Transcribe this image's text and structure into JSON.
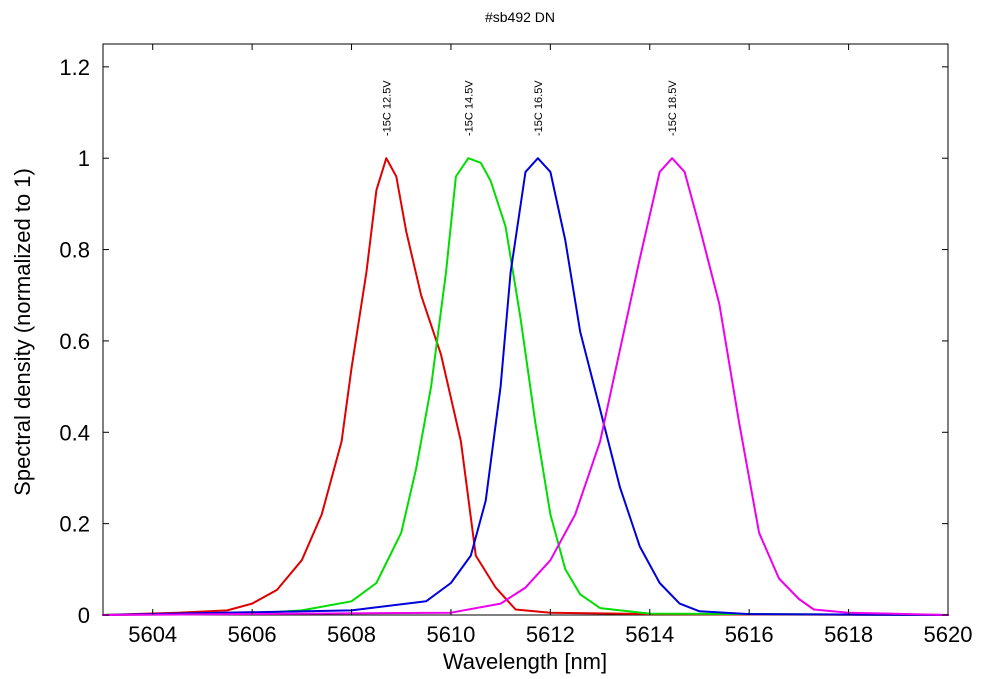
{
  "chart_data": {
    "type": "line",
    "title": "#sb492 DN",
    "xlabel": "Wavelength [nm]",
    "ylabel": "Spectral density (normalized to 1)",
    "xlim": [
      5603,
      5620
    ],
    "ylim": [
      0,
      1.25
    ],
    "xticks": [
      5604,
      5606,
      5608,
      5610,
      5612,
      5614,
      5616,
      5618,
      5620
    ],
    "yticks": [
      0,
      0.2,
      0.4,
      0.6,
      0.8,
      1,
      1.2
    ],
    "ytick_labels": [
      "0",
      "0.2",
      "0.4",
      "0.6",
      "0.8",
      "1",
      "1.2"
    ],
    "grid": false,
    "legend": "none",
    "series": [
      {
        "color": "#e00000",
        "annotation": "-15C 12.5V",
        "peak_x": 5608.7,
        "x": [
          5603.0,
          5604.5,
          5605.5,
          5606.0,
          5606.5,
          5607.0,
          5607.4,
          5607.8,
          5608.0,
          5608.3,
          5608.5,
          5608.7,
          5608.9,
          5609.1,
          5609.4,
          5609.8,
          5610.2,
          5610.5,
          5610.9,
          5611.3,
          5612.0,
          5614.0,
          5620.0
        ],
        "y": [
          0.0,
          0.005,
          0.01,
          0.025,
          0.055,
          0.12,
          0.22,
          0.38,
          0.54,
          0.75,
          0.93,
          1.0,
          0.96,
          0.84,
          0.7,
          0.57,
          0.38,
          0.13,
          0.06,
          0.012,
          0.005,
          0.002,
          0.0
        ]
      },
      {
        "color": "#00dd00",
        "annotation": "-15C 14.5V",
        "peak_x": 5610.35,
        "x": [
          5603.0,
          5606.0,
          5607.0,
          5608.0,
          5608.5,
          5609.0,
          5609.3,
          5609.6,
          5609.9,
          5610.1,
          5610.35,
          5610.6,
          5610.8,
          5611.1,
          5611.4,
          5611.7,
          5612.0,
          5612.3,
          5612.6,
          5613.0,
          5614.0,
          5620.0
        ],
        "y": [
          0.0,
          0.003,
          0.01,
          0.03,
          0.07,
          0.18,
          0.32,
          0.5,
          0.75,
          0.96,
          1.0,
          0.99,
          0.95,
          0.85,
          0.65,
          0.42,
          0.22,
          0.1,
          0.045,
          0.015,
          0.003,
          0.0
        ]
      },
      {
        "color": "#0000dd",
        "annotation": "-15C 16.5V",
        "peak_x": 5611.75,
        "x": [
          5603.0,
          5608.0,
          5609.5,
          5610.0,
          5610.4,
          5610.7,
          5611.0,
          5611.2,
          5611.5,
          5611.75,
          5612.0,
          5612.3,
          5612.6,
          5613.0,
          5613.4,
          5613.8,
          5614.2,
          5614.6,
          5615.0,
          5616.0,
          5620.0
        ],
        "y": [
          0.0,
          0.01,
          0.03,
          0.07,
          0.13,
          0.25,
          0.5,
          0.75,
          0.97,
          1.0,
          0.97,
          0.82,
          0.62,
          0.45,
          0.28,
          0.15,
          0.07,
          0.025,
          0.008,
          0.002,
          0.0
        ]
      },
      {
        "color": "#ee00ee",
        "annotation": "-15C 18.5V",
        "peak_x": 5614.45,
        "x": [
          5603.0,
          5610.0,
          5611.0,
          5611.5,
          5612.0,
          5612.5,
          5613.0,
          5613.4,
          5613.8,
          5614.2,
          5614.45,
          5614.7,
          5615.0,
          5615.4,
          5615.8,
          5616.2,
          5616.6,
          5617.0,
          5617.3,
          5618.0,
          5620.0
        ],
        "y": [
          0.0,
          0.005,
          0.025,
          0.06,
          0.12,
          0.22,
          0.38,
          0.58,
          0.78,
          0.97,
          1.0,
          0.97,
          0.85,
          0.68,
          0.42,
          0.18,
          0.08,
          0.035,
          0.012,
          0.005,
          0.0
        ]
      }
    ]
  }
}
